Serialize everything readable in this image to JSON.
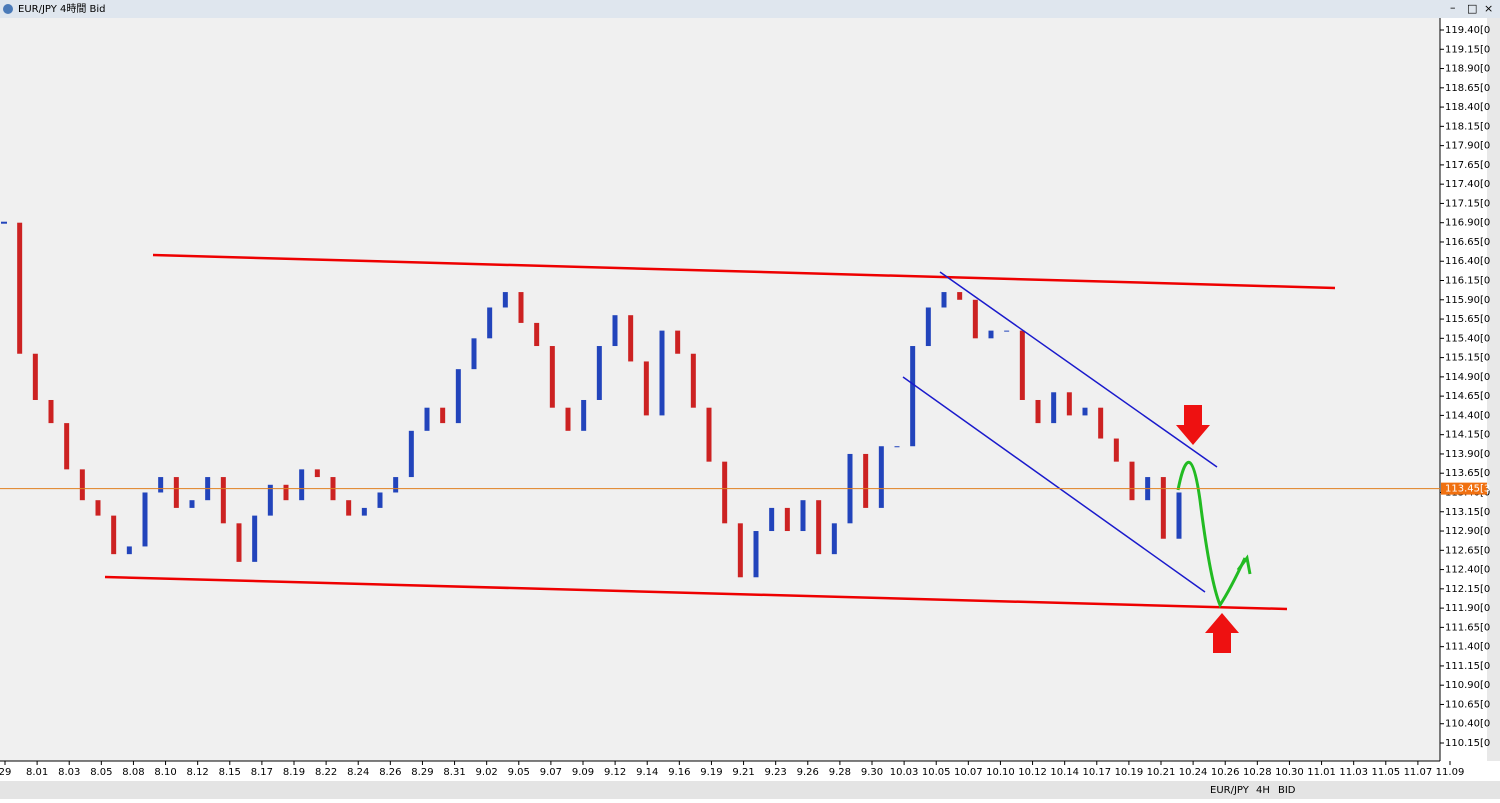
{
  "window": {
    "title": "EUR/JPY 4時間 Bid"
  },
  "chart_data": {
    "type": "candlestick",
    "categories": [
      "29",
      "8.01",
      "8.03",
      "8.05",
      "8.08",
      "8.10",
      "8.12",
      "8.15",
      "8.17",
      "8.19",
      "8.22",
      "8.24",
      "8.26",
      "8.29",
      "8.31",
      "9.02",
      "9.05",
      "9.07",
      "9.09",
      "9.12",
      "9.14",
      "9.16",
      "9.19",
      "9.21",
      "9.23",
      "9.26",
      "9.28",
      "9.30",
      "10.03",
      "10.05",
      "10.07",
      "10.10",
      "10.12",
      "10.14",
      "10.17",
      "10.19",
      "10.21",
      "10.24",
      "10.26",
      "10.28",
      "10.30",
      "11.01",
      "11.03",
      "11.05",
      "11.07",
      "11.09"
    ],
    "closes": [
      116.9,
      115.2,
      114.6,
      114.3,
      113.7,
      113.3,
      113.1,
      112.6,
      112.7,
      113.4,
      113.6,
      113.2,
      113.3,
      113.6,
      113.0,
      112.5,
      113.1,
      113.5,
      113.3,
      113.7,
      113.6,
      113.3,
      113.1,
      113.2,
      113.4,
      113.6,
      114.2,
      114.5,
      114.3,
      115.0,
      115.4,
      115.8,
      116.0,
      115.6,
      115.3,
      114.5,
      114.2,
      114.6,
      115.3,
      115.7,
      115.1,
      114.4,
      115.5,
      115.2,
      114.5,
      113.8,
      113.0,
      112.3,
      112.9,
      113.2,
      112.9,
      113.3,
      112.6,
      113.0,
      113.9,
      113.2,
      114.0,
      114.0,
      115.3,
      115.8,
      116.0,
      115.9,
      115.4,
      115.5,
      115.5,
      114.6,
      114.3,
      114.7,
      114.4,
      114.5,
      114.1,
      113.8,
      113.3,
      113.6,
      112.8,
      113.4
    ],
    "up_color": "#2244bb",
    "down_color": "#cc2222",
    "ylim": [
      110.15,
      119.4
    ],
    "yticks": [
      {
        "value": 119.4,
        "label": "119.40[0"
      },
      {
        "value": 119.15,
        "label": "119.15[0"
      },
      {
        "value": 118.9,
        "label": "118.90[0"
      },
      {
        "value": 118.65,
        "label": "118.65[0"
      },
      {
        "value": 118.4,
        "label": "118.40[0"
      },
      {
        "value": 118.15,
        "label": "118.15[0"
      },
      {
        "value": 117.9,
        "label": "117.90[0"
      },
      {
        "value": 117.65,
        "label": "117.65[0"
      },
      {
        "value": 117.4,
        "label": "117.40[0"
      },
      {
        "value": 117.15,
        "label": "117.15[0"
      },
      {
        "value": 116.9,
        "label": "116.90[0"
      },
      {
        "value": 116.65,
        "label": "116.65[0"
      },
      {
        "value": 116.4,
        "label": "116.40[0"
      },
      {
        "value": 116.15,
        "label": "116.15[0"
      },
      {
        "value": 115.9,
        "label": "115.90[0"
      },
      {
        "value": 115.65,
        "label": "115.65[0"
      },
      {
        "value": 115.4,
        "label": "115.40[0"
      },
      {
        "value": 115.15,
        "label": "115.15[0"
      },
      {
        "value": 114.9,
        "label": "114.90[0"
      },
      {
        "value": 114.65,
        "label": "114.65[0"
      },
      {
        "value": 114.4,
        "label": "114.40[0"
      },
      {
        "value": 114.15,
        "label": "114.15[0"
      },
      {
        "value": 113.9,
        "label": "113.90[0"
      },
      {
        "value": 113.65,
        "label": "113.65[0"
      },
      {
        "value": 113.4,
        "label": "113.40[0"
      },
      {
        "value": 113.15,
        "label": "113.15[0"
      },
      {
        "value": 112.9,
        "label": "112.90[0"
      },
      {
        "value": 112.65,
        "label": "112.65[0"
      },
      {
        "value": 112.4,
        "label": "112.40[0"
      },
      {
        "value": 112.15,
        "label": "112.15[0"
      },
      {
        "value": 111.9,
        "label": "111.90[0"
      },
      {
        "value": 111.65,
        "label": "111.65[0"
      },
      {
        "value": 111.4,
        "label": "111.40[0"
      },
      {
        "value": 111.15,
        "label": "111.15[0"
      },
      {
        "value": 110.9,
        "label": "110.90[0"
      },
      {
        "value": 110.65,
        "label": "110.65[0"
      },
      {
        "value": 110.4,
        "label": "110.40[0"
      },
      {
        "value": 110.15,
        "label": "110.15[0"
      }
    ],
    "current_price": {
      "value": 113.45,
      "label": "113.45[3"
    }
  },
  "toolbar": {
    "symbol": "EUR/JPY",
    "timeframe": "4H",
    "price_type": "BID"
  }
}
